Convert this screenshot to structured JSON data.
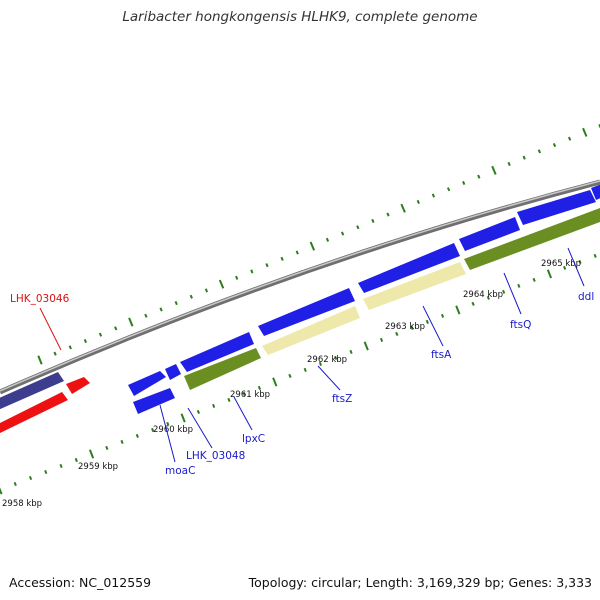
{
  "title": "Laribacter hongkongensis HLHK9, complete genome",
  "accession": "Accession: NC_012559",
  "summary": "Topology: circular; Length: 3,169,329 bp; Genes: 3,333",
  "colors": {
    "backbone": "#8c8c8c",
    "ticks": "#2e7d1e",
    "blue_gene": "#1f1fe6",
    "navy_gene": "#3d3d8f",
    "red_gene": "#ee1111",
    "olive_gene": "#6b8e23",
    "pale_gene": "#eee8aa",
    "blue_label": "#1a1acc",
    "red_label": "#dd1111"
  },
  "scale": {
    "unit": "kbp",
    "labels": [
      "2958 kbp",
      "2959 kbp",
      "2960 kbp",
      "2961 kbp",
      "2962 kbp",
      "2963 kbp",
      "2964 kbp",
      "2965 kbp"
    ]
  },
  "genes": [
    {
      "name": "LHK_03046",
      "color": "red"
    },
    {
      "name": "moaC",
      "color": "blue"
    },
    {
      "name": "LHK_03048",
      "color": "blue"
    },
    {
      "name": "lpxC",
      "color": "blue"
    },
    {
      "name": "ftsZ",
      "color": "blue"
    },
    {
      "name": "ftsA",
      "color": "blue"
    },
    {
      "name": "ftsQ",
      "color": "blue"
    },
    {
      "name": "ddl",
      "color": "blue"
    }
  ]
}
